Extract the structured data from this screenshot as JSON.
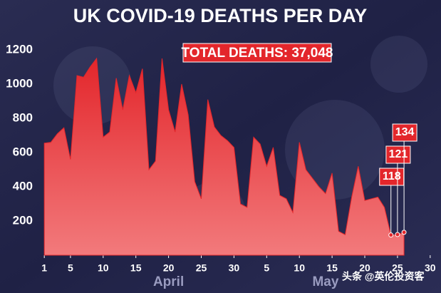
{
  "chart_data": {
    "type": "area",
    "title": "UK COVID-19 DEATHS PER DAY",
    "annotation": "TOTAL DEATHS: 37,048",
    "month_labels": [
      {
        "x": 20,
        "label": "April"
      },
      {
        "x": 44,
        "label": "May"
      }
    ],
    "watermark": "头条 @英伦投资客",
    "color": "#e3262b",
    "x": [
      1,
      2,
      3,
      4,
      5,
      6,
      7,
      8,
      9,
      10,
      11,
      12,
      13,
      14,
      15,
      16,
      17,
      18,
      19,
      20,
      21,
      22,
      23,
      24,
      25,
      26,
      27,
      28,
      29,
      30,
      31,
      32,
      33,
      34,
      35,
      36,
      37,
      38,
      39,
      40,
      41,
      42,
      43,
      44,
      45,
      46,
      47,
      48,
      49,
      50,
      51,
      52,
      53,
      54,
      55,
      56
    ],
    "values": [
      655,
      660,
      710,
      745,
      560,
      1050,
      1040,
      1100,
      1150,
      690,
      720,
      1035,
      850,
      1050,
      950,
      1090,
      500,
      550,
      1150,
      850,
      720,
      1000,
      820,
      430,
      330,
      910,
      750,
      700,
      670,
      630,
      300,
      280,
      690,
      650,
      520,
      630,
      350,
      330,
      250,
      660,
      500,
      450,
      400,
      360,
      480,
      140,
      120,
      340,
      520,
      320,
      330,
      340,
      280,
      118,
      121,
      134
    ],
    "labeled_indices": [
      53,
      54,
      55
    ],
    "xlim": [
      0,
      61
    ],
    "xticks": [
      1,
      5,
      10,
      15,
      20,
      25,
      30,
      {
        "value": 35,
        "label": "5"
      },
      {
        "value": 40,
        "label": "10"
      },
      {
        "value": 45,
        "label": "15"
      },
      {
        "value": 50,
        "label": "20"
      },
      {
        "value": 55,
        "label": "25"
      },
      {
        "value": 60,
        "label": "30"
      }
    ],
    "ylim": [
      0,
      1200
    ],
    "yticks": [
      200,
      400,
      600,
      800,
      1000,
      1200
    ],
    "grid": false
  }
}
